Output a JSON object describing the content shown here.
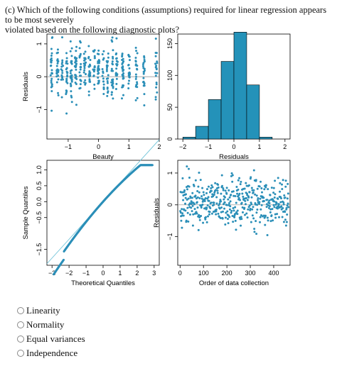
{
  "question": {
    "line1": "(c) Which of the following conditions (assumptions) required for linear regression appears to be most severely",
    "line2": "violated based on the following diagnostic plots?"
  },
  "colors": {
    "point": "#2b8fb8",
    "bar": "#2492b9",
    "refline": "#6ec3d8"
  },
  "chart_data": [
    {
      "type": "scatter",
      "xlabel": "Beauty",
      "ylabel": "Residuals",
      "x_ticks": [
        "-1",
        "0",
        "1",
        "2"
      ],
      "y_ticks": [
        "-1",
        "0",
        "1"
      ],
      "xlim": [
        -1.7,
        2.0
      ],
      "ylim": [
        -1.9,
        1.3
      ],
      "reference_line_y": 0
    },
    {
      "type": "bar",
      "xlabel": "Residuals",
      "x_ticks": [
        "-2",
        "-1",
        "0",
        "1",
        "2"
      ],
      "y_ticks": [
        "0",
        "50",
        "100",
        "150"
      ],
      "xlim": [
        -2.2,
        2.2
      ],
      "ylim": [
        0,
        165
      ],
      "bins": [
        {
          "from": -2.0,
          "to": -1.5,
          "count": 3
        },
        {
          "from": -1.5,
          "to": -1.0,
          "count": 20
        },
        {
          "from": -1.0,
          "to": -0.5,
          "count": 62
        },
        {
          "from": -0.5,
          "to": 0.0,
          "count": 122
        },
        {
          "from": 0.0,
          "to": 0.5,
          "count": 168
        },
        {
          "from": 0.5,
          "to": 1.0,
          "count": 85
        },
        {
          "from": 1.0,
          "to": 1.5,
          "count": 3
        }
      ]
    },
    {
      "type": "scatter",
      "xlabel": "Theoretical Quantiles",
      "ylabel": "Sample Quantiles",
      "x_ticks": [
        "-3",
        "-2",
        "-1",
        "0",
        "1",
        "2",
        "3"
      ],
      "y_ticks": [
        "-1.5",
        "-0.5",
        "0.0",
        "0.5",
        "1.0"
      ],
      "xlim": [
        -3.3,
        3.3
      ],
      "ylim": [
        -2.0,
        1.3
      ],
      "qq_line": [
        [
          -3.3,
          -1.95
        ],
        [
          3.3,
          1.95
        ]
      ]
    },
    {
      "type": "scatter",
      "xlabel": "Order of data collection",
      "ylabel": "Residuals",
      "x_ticks": [
        "0",
        "100",
        "200",
        "300",
        "400"
      ],
      "y_ticks": [
        "-1",
        "0",
        "1"
      ],
      "xlim": [
        -10,
        470
      ],
      "ylim": [
        -1.9,
        1.4
      ],
      "reference_line_y": 0
    }
  ],
  "options": [
    "Linearity",
    "Normality",
    "Equal variances",
    "Independence"
  ]
}
